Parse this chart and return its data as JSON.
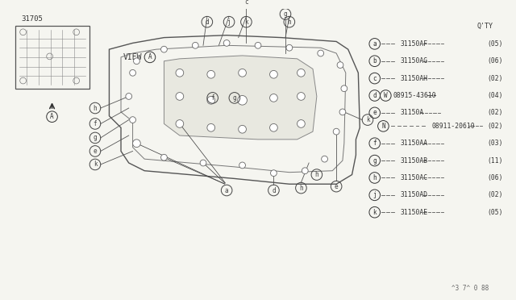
{
  "bg_color": "#f5f5f0",
  "part_number_main": "31705",
  "view_label": "VIEW",
  "view_circle": "A",
  "footer": "^3 7^ 0 88",
  "legend": [
    {
      "label": "a",
      "part": "31150AF",
      "qty": "(05)"
    },
    {
      "label": "b",
      "part": "31150AG",
      "qty": "(06)"
    },
    {
      "label": "c",
      "part": "31150AH",
      "qty": "(02)"
    },
    {
      "label": "d",
      "part": "08915-43610",
      "qty": "(04)",
      "w_circle": true
    },
    {
      "label": "e",
      "part": "31150A",
      "qty": "(02)"
    },
    {
      "label": "N",
      "part": "08911-20610",
      "qty": "(02)",
      "n_only": true
    },
    {
      "label": "f",
      "part": "31150AA",
      "qty": "(03)"
    },
    {
      "label": "g",
      "part": "31150AB",
      "qty": "(11)"
    },
    {
      "label": "h",
      "part": "31150AC",
      "qty": "(06)"
    },
    {
      "label": "j",
      "part": "31150AD",
      "qty": "(02)"
    },
    {
      "label": "k",
      "part": "31150AE",
      "qty": "(05)"
    }
  ]
}
